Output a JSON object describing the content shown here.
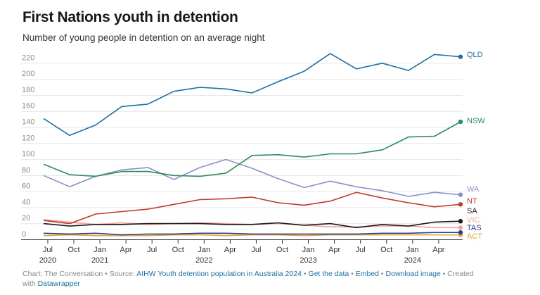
{
  "title": "First Nations youth in detention",
  "subtitle": "Number of young people in detention on an average night",
  "footer": {
    "prefix": "Chart: The Conversation • Source: ",
    "source_link": "AIHW Youth detention population in Australia 2024",
    "sep1": " • ",
    "get_data": "Get the data",
    "sep2": " • ",
    "embed": "Embed",
    "sep3": " • ",
    "download": "Download image",
    "created_with": " • Created with ",
    "datawrapper": "Datawrapper"
  },
  "chart_data": {
    "type": "line",
    "ylim": [
      0,
      230
    ],
    "y_ticks": [
      0,
      20,
      40,
      60,
      80,
      100,
      120,
      140,
      160,
      180,
      200,
      220
    ],
    "x_ticks": [
      {
        "x": 2020.5,
        "label": "Jul",
        "year": "2020"
      },
      {
        "x": 2020.75,
        "label": "Oct",
        "year": ""
      },
      {
        "x": 2021.0,
        "label": "Jan",
        "year": "2021"
      },
      {
        "x": 2021.25,
        "label": "Apr",
        "year": ""
      },
      {
        "x": 2021.5,
        "label": "Jul",
        "year": ""
      },
      {
        "x": 2021.75,
        "label": "Oct",
        "year": ""
      },
      {
        "x": 2022.0,
        "label": "Jan",
        "year": "2022"
      },
      {
        "x": 2022.25,
        "label": "Apr",
        "year": ""
      },
      {
        "x": 2022.5,
        "label": "Jul",
        "year": ""
      },
      {
        "x": 2022.75,
        "label": "Oct",
        "year": ""
      },
      {
        "x": 2023.0,
        "label": "Jan",
        "year": "2023"
      },
      {
        "x": 2023.25,
        "label": "Apr",
        "year": ""
      },
      {
        "x": 2023.5,
        "label": "Jul",
        "year": ""
      },
      {
        "x": 2023.75,
        "label": "Oct",
        "year": ""
      },
      {
        "x": 2024.0,
        "label": "Jan",
        "year": "2024"
      },
      {
        "x": 2024.25,
        "label": "Apr",
        "year": ""
      }
    ],
    "x": [
      2020.46,
      2020.71,
      2020.96,
      2021.21,
      2021.46,
      2021.71,
      2021.96,
      2022.21,
      2022.46,
      2022.71,
      2022.96,
      2023.21,
      2023.46,
      2023.71,
      2023.96,
      2024.21,
      2024.46
    ],
    "grid": true,
    "series": [
      {
        "name": "QLD",
        "color": "#1f6fa5",
        "values": [
          148,
          127,
          140,
          163,
          166,
          182,
          187,
          185,
          180,
          194,
          207,
          229,
          210,
          217,
          208,
          228,
          225
        ]
      },
      {
        "name": "NSW",
        "color": "#2c8b5b",
        "values": [
          91,
          78,
          76,
          82,
          82,
          77,
          76,
          80,
          102,
          103,
          100,
          104,
          104,
          109,
          125,
          126,
          144
        ]
      },
      {
        "name": "WA",
        "color": "#8891cc",
        "values": [
          77,
          63,
          76,
          84,
          87,
          72,
          87,
          97,
          86,
          73,
          62,
          70,
          63,
          58,
          51,
          56,
          53
        ]
      },
      {
        "name": "NT",
        "color": "#c0392b",
        "values": [
          21,
          17,
          29,
          32,
          35,
          41,
          47,
          48,
          50,
          43,
          40,
          45,
          56,
          49,
          43,
          38,
          41
        ]
      },
      {
        "name": "SA",
        "color": "#1b1b1b",
        "values": [
          17,
          14,
          16,
          16,
          17,
          17,
          17,
          16,
          16,
          18,
          15,
          17,
          12,
          16,
          14,
          19,
          20
        ]
      },
      {
        "name": "VIC",
        "color": "#f4a0a0",
        "values": [
          22,
          19,
          16,
          18,
          16,
          17,
          18,
          17,
          16,
          17,
          15,
          13,
          13,
          14,
          14,
          12,
          12
        ]
      },
      {
        "name": "TAS",
        "color": "#2b3f8c",
        "values": [
          5,
          4,
          5,
          3,
          4,
          4,
          5,
          5,
          4,
          4,
          4,
          4,
          4,
          5,
          5,
          6,
          6
        ]
      },
      {
        "name": "ACT",
        "color": "#e8a33a",
        "values": [
          2,
          3,
          2,
          2,
          2,
          3,
          3,
          2,
          3,
          3,
          2,
          3,
          3,
          3,
          3,
          3,
          3
        ]
      }
    ]
  }
}
